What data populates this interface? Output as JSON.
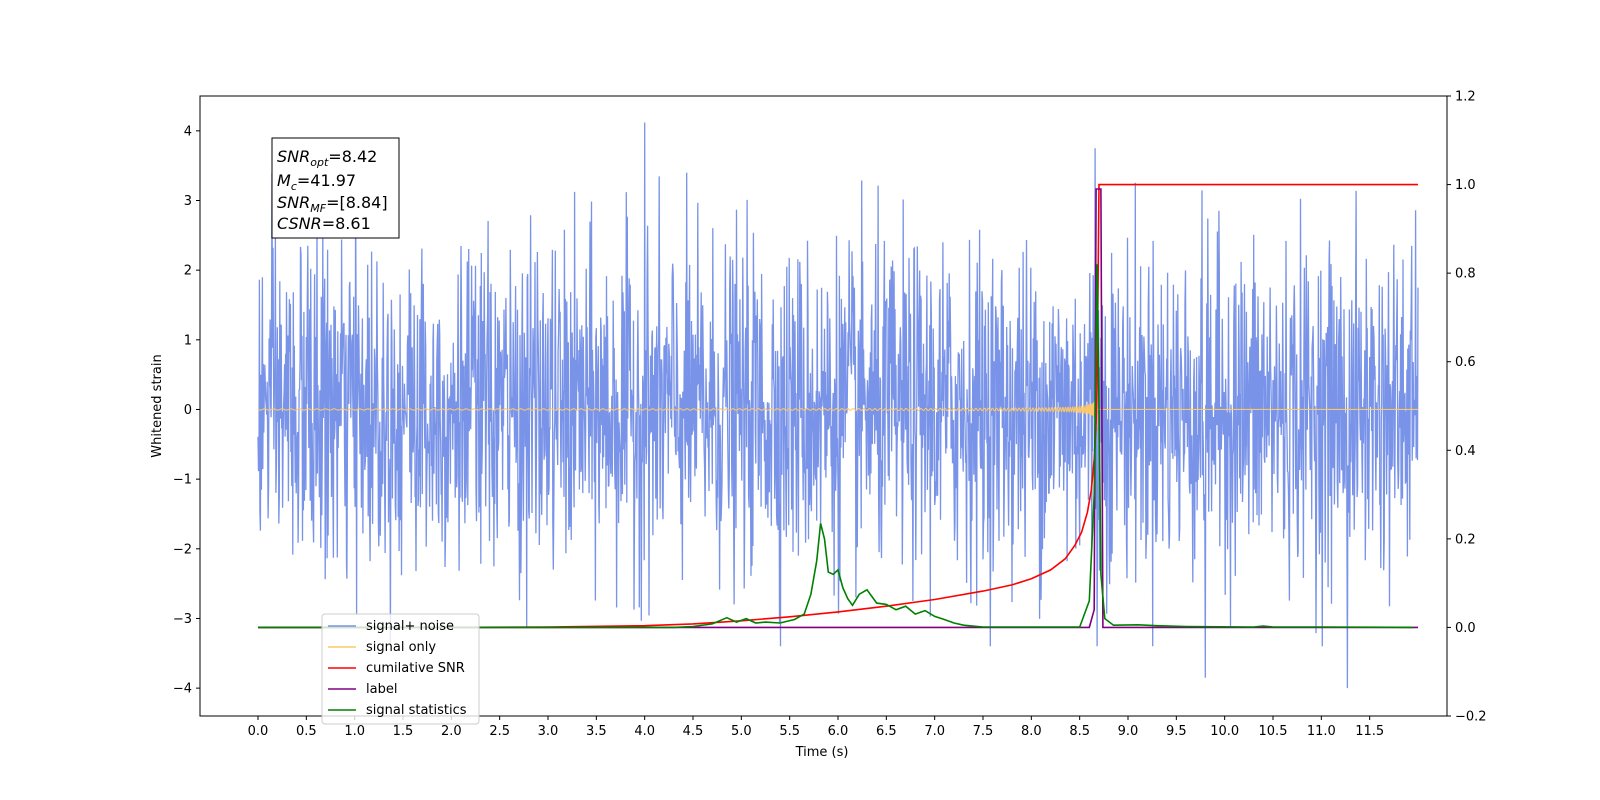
{
  "chart_data": {
    "type": "line",
    "xlabel": "Time (s)",
    "ylabel": "Whitened strain",
    "xlim": [
      -0.6,
      12.3
    ],
    "ylim": [
      -4.4,
      4.5
    ],
    "y2lim": [
      -0.2,
      1.2
    ],
    "x_ticks": [
      0.0,
      0.5,
      1.0,
      1.5,
      2.0,
      2.5,
      3.0,
      3.5,
      4.0,
      4.5,
      5.0,
      5.5,
      6.0,
      6.5,
      7.0,
      7.5,
      8.0,
      8.5,
      9.0,
      9.5,
      10.0,
      10.5,
      11.0,
      11.5
    ],
    "x_tick_labels": [
      "0.0",
      "0.5",
      "1.0",
      "1.5",
      "2.0",
      "2.5",
      "3.0",
      "3.5",
      "4.0",
      "4.5",
      "5.0",
      "5.5",
      "6.0",
      "6.5",
      "7.0",
      "7.5",
      "8.0",
      "8.5",
      "9.0",
      "9.5",
      "10.0",
      "10.5",
      "11.0",
      "11.5"
    ],
    "y_ticks": [
      -4,
      -3,
      -2,
      -1,
      0,
      1,
      2,
      3,
      4
    ],
    "y_tick_labels": [
      "−4",
      "−3",
      "−2",
      "−1",
      "0",
      "1",
      "2",
      "3",
      "4"
    ],
    "y2_ticks": [
      -0.2,
      0.0,
      0.2,
      0.4,
      0.6,
      0.8,
      1.0,
      1.2
    ],
    "y2_tick_labels": [
      "−0.2",
      "0.0",
      "0.2",
      "0.4",
      "0.6",
      "0.8",
      "1.0",
      "1.2"
    ],
    "legend_position": "lower-left",
    "legend": [
      {
        "label": "signal+ noise",
        "color": "#7893e8"
      },
      {
        "label": "signal only",
        "color": "#ffc966"
      },
      {
        "label": "cumilative SNR",
        "color": "#ff0000"
      },
      {
        "label": "label",
        "color": "#800080"
      },
      {
        "label": "signal statistics",
        "color": "#008000"
      }
    ],
    "annotation": {
      "lines": [
        {
          "sym": "SNR",
          "sub": "opt",
          "value": "=8.42"
        },
        {
          "sym": "M",
          "sub": "c",
          "value": "=41.97"
        },
        {
          "sym": "SNR",
          "sub": "MF",
          "value": "=[8.84]"
        },
        {
          "sym": "CSNR",
          "sub": "",
          "value": "=8.61"
        }
      ]
    },
    "series": [
      {
        "name": "signal+ noise",
        "axis": "left",
        "color": "#7893e8",
        "description_values": {
          "x_start": 0.0,
          "x_end": 12.0,
          "typical_amplitude": 2.2,
          "max": 4.12,
          "min": -4.0
        }
      },
      {
        "name": "signal only",
        "axis": "left",
        "color": "#ffc966",
        "description_values": {
          "x_start": 0.0,
          "x_end": 8.7,
          "merger_time": 8.68,
          "peak_amplitude": 0.8
        }
      },
      {
        "name": "cumilative SNR",
        "axis": "right",
        "color": "#ff0000",
        "x": [
          0.0,
          1.0,
          2.0,
          3.0,
          4.0,
          4.5,
          5.0,
          5.5,
          6.0,
          6.5,
          7.0,
          7.5,
          7.8,
          8.0,
          8.2,
          8.35,
          8.45,
          8.52,
          8.58,
          8.62,
          8.65,
          8.67,
          8.68,
          8.7,
          12.0
        ],
        "y": [
          0.0,
          0.0,
          0.0,
          0.001,
          0.004,
          0.008,
          0.015,
          0.024,
          0.035,
          0.048,
          0.063,
          0.082,
          0.096,
          0.11,
          0.13,
          0.155,
          0.185,
          0.215,
          0.26,
          0.31,
          0.38,
          0.46,
          0.55,
          1.0,
          1.0
        ]
      },
      {
        "name": "label",
        "axis": "right",
        "color": "#800080",
        "x": [
          0.0,
          8.6,
          8.65,
          8.67,
          8.72,
          8.74,
          12.0
        ],
        "y": [
          0.0,
          0.0,
          0.04,
          0.99,
          0.99,
          0.0,
          0.0
        ]
      },
      {
        "name": "signal statistics",
        "axis": "right",
        "color": "#008000",
        "x": [
          0.0,
          4.3,
          4.5,
          4.7,
          4.85,
          4.95,
          5.05,
          5.15,
          5.25,
          5.4,
          5.55,
          5.65,
          5.72,
          5.78,
          5.82,
          5.86,
          5.9,
          5.95,
          6.0,
          6.05,
          6.1,
          6.15,
          6.22,
          6.3,
          6.4,
          6.5,
          6.6,
          6.7,
          6.8,
          6.9,
          7.0,
          7.1,
          7.2,
          7.3,
          7.5,
          8.5,
          8.6,
          8.65,
          8.68,
          8.7,
          8.72,
          8.76,
          8.85,
          9.1,
          9.3,
          9.6,
          10.3,
          10.4,
          10.5,
          11.0,
          11.95
        ],
        "y": [
          0.0,
          0.0,
          0.002,
          0.008,
          0.022,
          0.012,
          0.02,
          0.01,
          0.012,
          0.01,
          0.018,
          0.03,
          0.075,
          0.15,
          0.235,
          0.2,
          0.125,
          0.12,
          0.13,
          0.09,
          0.065,
          0.05,
          0.075,
          0.085,
          0.055,
          0.052,
          0.04,
          0.048,
          0.03,
          0.038,
          0.025,
          0.018,
          0.01,
          0.005,
          0.001,
          0.001,
          0.06,
          0.3,
          0.82,
          0.5,
          0.12,
          0.02,
          0.005,
          0.006,
          0.004,
          0.002,
          0.001,
          0.003,
          0.001,
          0.001,
          0.0
        ]
      }
    ]
  }
}
